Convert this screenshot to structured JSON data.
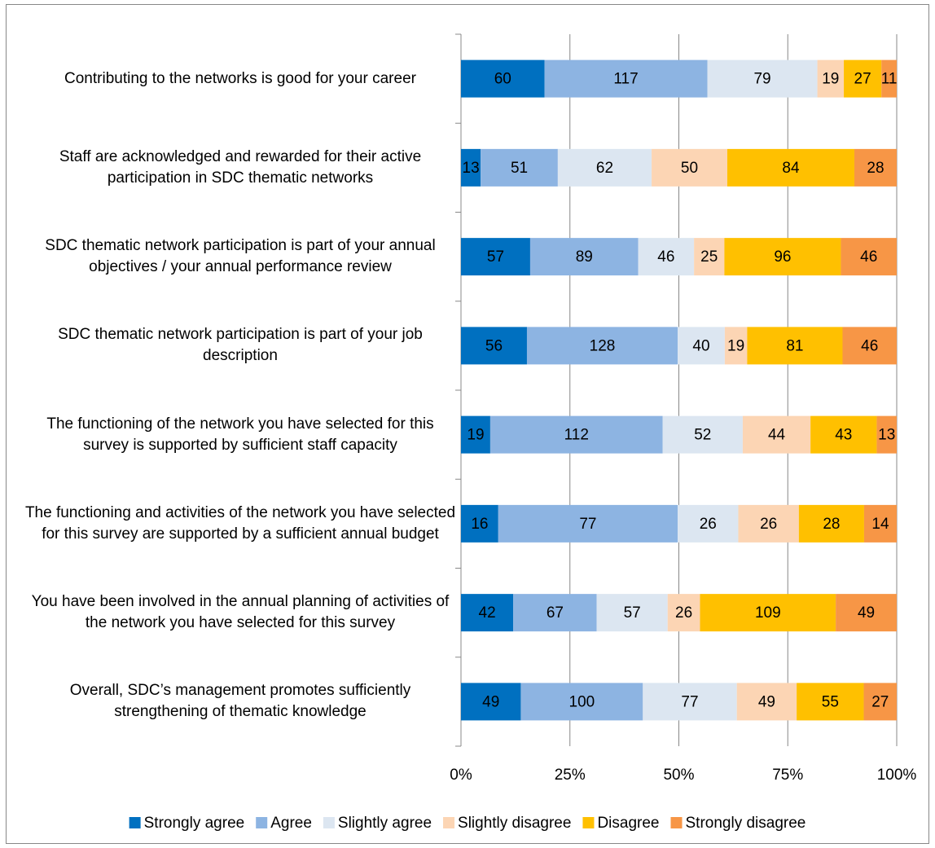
{
  "chart_data": {
    "type": "bar",
    "orientation": "horizontal",
    "stacking": "percent",
    "categories": [
      "Contributing to the networks is good for your career",
      "Staff are acknowledged and rewarded for their active participation in SDC thematic networks",
      "SDC thematic network participation is part of your annual objectives / your annual performance review",
      "SDC thematic network participation is part of your job description",
      "The functioning of the network you have selected for this survey is supported by sufficient staff capacity",
      "The functioning and activities of the network you have selected for this survey are supported by a sufficient annual budget",
      "You have been involved in the annual planning of activities of the network you have selected for this survey",
      "Overall, SDC’s management promotes sufficiently strengthening of thematic knowledge"
    ],
    "series": [
      {
        "name": "Strongly agree",
        "color": "#0070c0",
        "values": [
          60,
          13,
          57,
          56,
          19,
          16,
          42,
          49
        ]
      },
      {
        "name": "Agree",
        "color": "#8db4e2",
        "values": [
          117,
          51,
          89,
          128,
          112,
          77,
          67,
          100
        ]
      },
      {
        "name": "Slightly agree",
        "color": "#dce6f1",
        "values": [
          79,
          62,
          46,
          40,
          52,
          26,
          57,
          77
        ]
      },
      {
        "name": "Slightly disagree",
        "color": "#fcd5b4",
        "values": [
          19,
          50,
          25,
          19,
          44,
          26,
          26,
          49
        ]
      },
      {
        "name": "Disagree",
        "color": "#ffc000",
        "values": [
          27,
          84,
          96,
          81,
          43,
          28,
          109,
          55
        ]
      },
      {
        "name": "Strongly disagree",
        "color": "#f79646",
        "values": [
          11,
          28,
          46,
          46,
          13,
          14,
          49,
          27
        ]
      }
    ],
    "xlim": [
      0,
      100
    ],
    "xticks": [
      {
        "value": 0,
        "label": "0%"
      },
      {
        "value": 25,
        "label": "25%"
      },
      {
        "value": 50,
        "label": "50%"
      },
      {
        "value": 75,
        "label": "75%"
      },
      {
        "value": 100,
        "label": "100%"
      }
    ],
    "grid": true,
    "legend": "bottom"
  }
}
